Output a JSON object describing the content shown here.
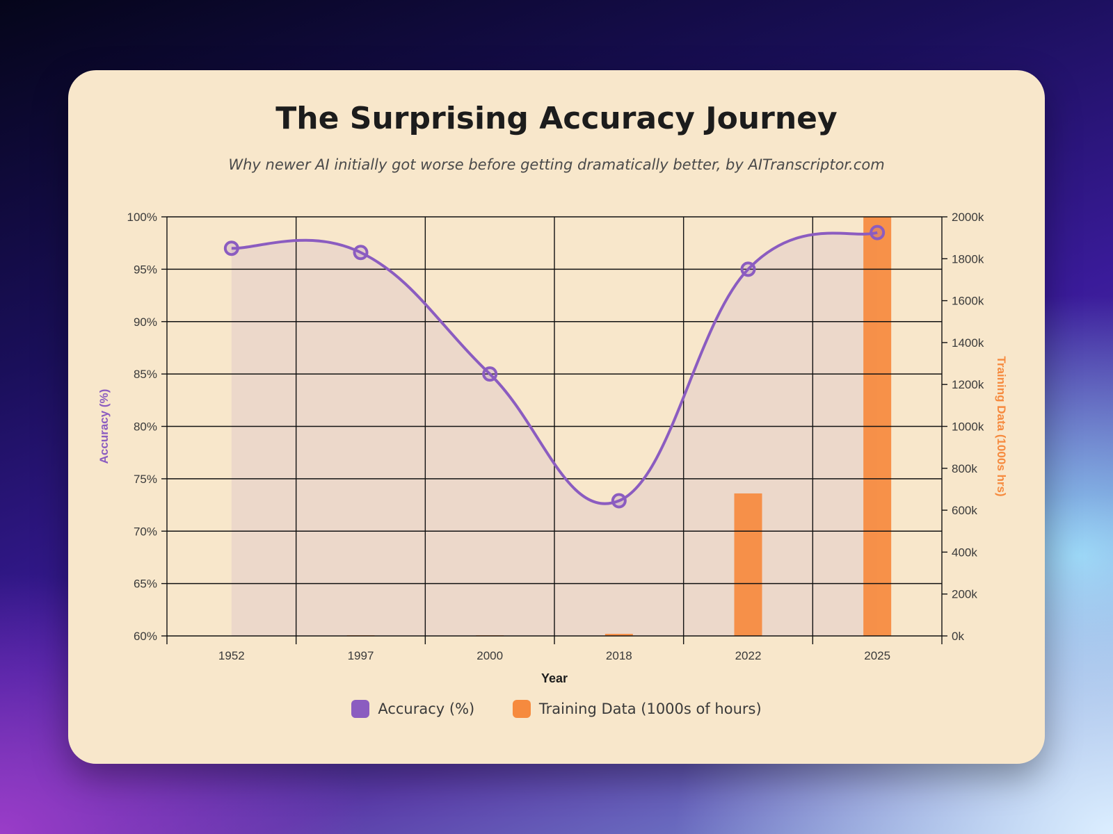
{
  "chart_data": {
    "type": "bar+line",
    "title": "The Surprising Accuracy Journey",
    "subtitle": "Why newer AI initially got worse before getting dramatically better, by AITranscriptor.com",
    "xlabel": "Year",
    "ylabel_left": "Accuracy (%)",
    "ylabel_right": "Training Data (1000s hrs)",
    "categories": [
      "1952",
      "1997",
      "2000",
      "2018",
      "2022",
      "2025"
    ],
    "series": [
      {
        "name": "Accuracy (%)",
        "type": "line",
        "axis": "left",
        "color": "#8b5cc0",
        "values": [
          97,
          96.6,
          85,
          72.9,
          95,
          98.5
        ]
      },
      {
        "name": "Training Data (1000s of hours)",
        "type": "bar",
        "axis": "right",
        "color": "#f68a3e",
        "values": [
          0,
          0.5,
          1,
          10,
          680,
          2000
        ]
      }
    ],
    "ylim_left": [
      60,
      100
    ],
    "ylim_right": [
      0,
      2000
    ],
    "yticks_left": [
      "60%",
      "65%",
      "70%",
      "75%",
      "80%",
      "85%",
      "90%",
      "95%",
      "100%"
    ],
    "yticks_right": [
      "0k",
      "200k",
      "400k",
      "600k",
      "800k",
      "1000k",
      "1200k",
      "1400k",
      "1600k",
      "1800k",
      "2000k"
    ],
    "grid": true,
    "legend": "bottom"
  }
}
